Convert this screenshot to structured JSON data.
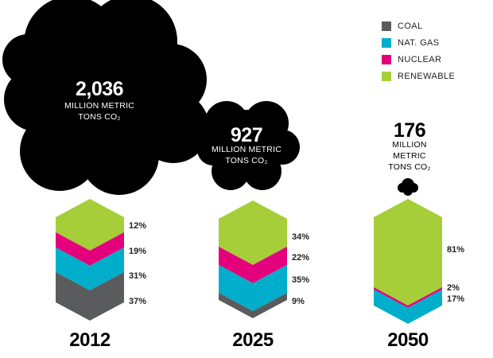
{
  "legend": [
    {
      "label": "COAL",
      "color": "#5a5b5d"
    },
    {
      "label": "NAT. GAS",
      "color": "#00aecb"
    },
    {
      "label": "NUCLEAR",
      "color": "#e4007c"
    },
    {
      "label": "RENEWABLE",
      "color": "#a6ce39"
    }
  ],
  "chart_data": {
    "type": "stacked-area",
    "categories": [
      "2012",
      "2025",
      "2050"
    ],
    "emissions": [
      {
        "year": "2012",
        "value": "2,036",
        "unit_lines": [
          "MILLION METRIC",
          "TONS CO₂"
        ]
      },
      {
        "year": "2025",
        "value": "927",
        "unit_lines": [
          "MILLION METRIC",
          "TONS CO₂"
        ]
      },
      {
        "year": "2050",
        "value": "176",
        "unit_lines": [
          "MILLION",
          "METRIC",
          "TONS CO₂"
        ]
      }
    ],
    "series": [
      {
        "name": "COAL",
        "values": [
          37,
          9,
          0
        ]
      },
      {
        "name": "NAT. GAS",
        "values": [
          31,
          35,
          17
        ]
      },
      {
        "name": "NUCLEAR",
        "values": [
          19,
          22,
          2
        ]
      },
      {
        "name": "RENEWABLE",
        "values": [
          12,
          34,
          81
        ]
      }
    ],
    "labels": [
      [
        "12%",
        "19%",
        "31%",
        "37%"
      ],
      [
        "34%",
        "22%",
        "35%",
        "9%"
      ],
      [
        "81%",
        "2%",
        "17%"
      ]
    ]
  }
}
